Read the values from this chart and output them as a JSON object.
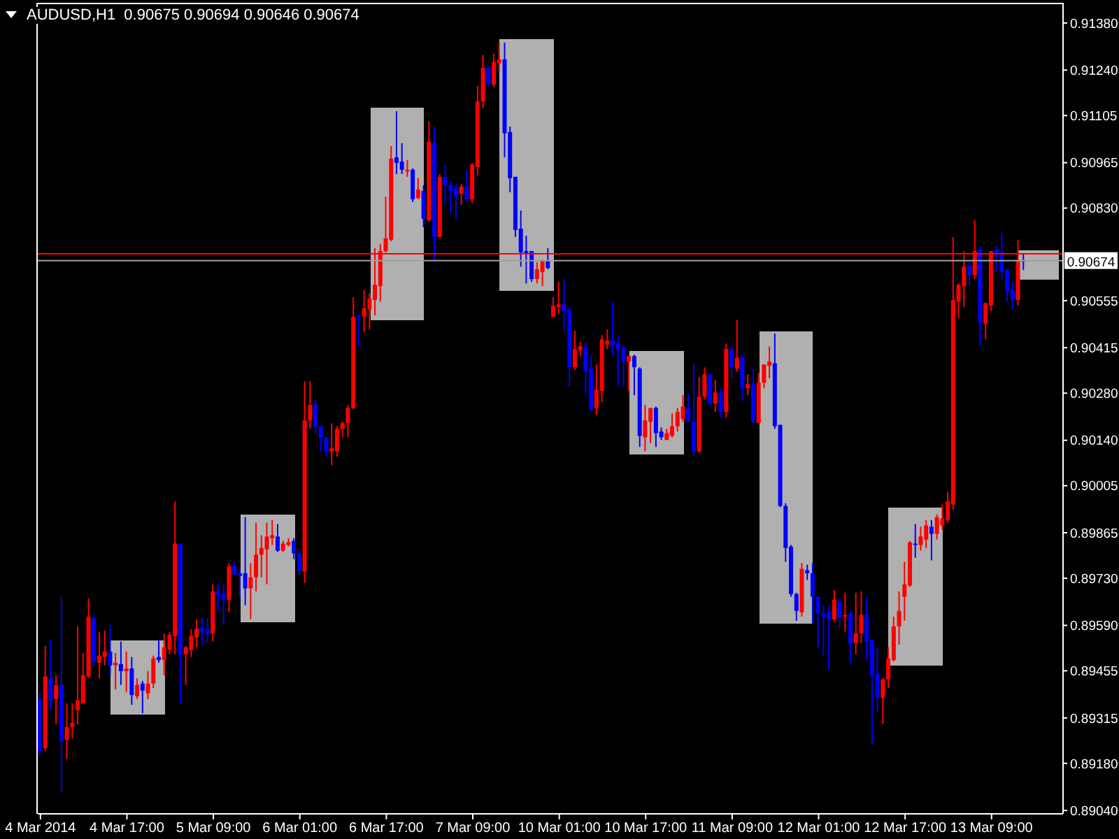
{
  "chart_data": {
    "type": "candlestick",
    "title": "AUDUSD,H1  0.90675 0.90694 0.90646 0.90674",
    "categories": [
      "4 Mar 2014",
      null,
      null,
      null,
      null,
      null,
      null,
      null,
      null,
      null,
      null,
      null,
      null,
      null,
      null,
      null,
      "4 Mar 17:00",
      null,
      null,
      null,
      null,
      null,
      null,
      null,
      null,
      null,
      null,
      null,
      null,
      null,
      null,
      null,
      "5 Mar 09:00",
      null,
      null,
      null,
      null,
      null,
      null,
      null,
      null,
      null,
      null,
      null,
      null,
      null,
      null,
      null,
      "6 Mar 01:00",
      null,
      null,
      null,
      null,
      null,
      null,
      null,
      null,
      null,
      null,
      null,
      null,
      null,
      null,
      null,
      "6 Mar 17:00",
      null,
      null,
      null,
      null,
      null,
      null,
      null,
      null,
      null,
      null,
      null,
      null,
      null,
      null,
      null,
      "7 Mar 09:00",
      null,
      null,
      null,
      null,
      null,
      null,
      null,
      null,
      null,
      null,
      null,
      null,
      null,
      null,
      null,
      "10 Mar 01:00",
      null,
      null,
      null,
      null,
      null,
      null,
      null,
      null,
      null,
      null,
      null,
      null,
      null,
      null,
      null,
      "10 Mar 17:00",
      null,
      null,
      null,
      null,
      null,
      null,
      null,
      null,
      null,
      null,
      null,
      null,
      null,
      null,
      null,
      "11 Mar 09:00",
      null,
      null,
      null,
      null,
      null,
      null,
      null,
      null,
      null,
      null,
      null,
      null,
      null,
      null,
      null,
      "12 Mar 01:00",
      null,
      null,
      null,
      null,
      null,
      null,
      null,
      null,
      null,
      null,
      null,
      null,
      null,
      null,
      null,
      "12 Mar 17:00",
      null,
      null,
      null,
      null,
      null,
      null,
      null,
      null,
      null,
      null,
      null,
      null,
      null,
      null,
      null,
      "13 Mar 09:00",
      null,
      null,
      null,
      null,
      null,
      null
    ],
    "ohlc": [
      [
        0.89371,
        0.89392,
        0.89205,
        0.89217
      ],
      [
        0.89225,
        0.89529,
        0.89217,
        0.89438
      ],
      [
        0.89433,
        0.8955,
        0.89338,
        0.89367
      ],
      [
        0.89371,
        0.89442,
        0.89296,
        0.89413
      ],
      [
        0.89413,
        0.89675,
        0.89092,
        0.89246
      ],
      [
        0.8925,
        0.89358,
        0.89192,
        0.89288
      ],
      [
        0.89288,
        0.89358,
        0.89254,
        0.893
      ],
      [
        0.89338,
        0.89587,
        0.89296,
        0.89367
      ],
      [
        0.89358,
        0.89508,
        0.89358,
        0.89442
      ],
      [
        0.89438,
        0.8967,
        0.89433,
        0.89616
      ],
      [
        0.89612,
        0.89621,
        0.89467,
        0.89483
      ],
      [
        0.89479,
        0.89571,
        0.89433,
        0.895
      ],
      [
        0.89496,
        0.89575,
        0.89471,
        0.89512
      ],
      [
        0.89512,
        0.89591,
        0.89442,
        0.89471
      ],
      [
        0.89471,
        0.89508,
        0.894,
        0.89479
      ],
      [
        0.89475,
        0.89542,
        0.89413,
        0.89454
      ],
      [
        0.89454,
        0.89512,
        0.89392,
        0.89462
      ],
      [
        0.89462,
        0.89496,
        0.89354,
        0.89383
      ],
      [
        0.89379,
        0.89433,
        0.89371,
        0.89413
      ],
      [
        0.89417,
        0.89425,
        0.89329,
        0.89396
      ],
      [
        0.89388,
        0.89454,
        0.89371,
        0.89417
      ],
      [
        0.89417,
        0.895,
        0.89404,
        0.89492
      ],
      [
        0.89496,
        0.89546,
        0.89479,
        0.89487
      ],
      [
        0.89487,
        0.89566,
        0.89442,
        0.89525
      ],
      [
        0.89517,
        0.89571,
        0.89504,
        0.89562
      ],
      [
        0.89558,
        0.89958,
        0.89504,
        0.89833
      ],
      [
        0.89833,
        0.89833,
        0.89358,
        0.89504
      ],
      [
        0.89504,
        0.89529,
        0.89413,
        0.89525
      ],
      [
        0.89517,
        0.89579,
        0.89496,
        0.89558
      ],
      [
        0.89554,
        0.89608,
        0.89525,
        0.89579
      ],
      [
        0.89583,
        0.89612,
        0.89529,
        0.89571
      ],
      [
        0.89579,
        0.89612,
        0.89537,
        0.89566
      ],
      [
        0.89566,
        0.89712,
        0.89542,
        0.89691
      ],
      [
        0.89691,
        0.89712,
        0.89633,
        0.89679
      ],
      [
        0.89683,
        0.89712,
        0.89591,
        0.89666
      ],
      [
        0.89666,
        0.89775,
        0.89629,
        0.89766
      ],
      [
        0.89766,
        0.89779,
        0.89737,
        0.89741
      ],
      [
        0.89745,
        0.89754,
        0.89675,
        0.89737
      ],
      [
        0.89745,
        0.89912,
        0.8965,
        0.897
      ],
      [
        0.897,
        0.89775,
        0.89608,
        0.89733
      ],
      [
        0.89733,
        0.89895,
        0.89691,
        0.898
      ],
      [
        0.898,
        0.89858,
        0.89733,
        0.8982
      ],
      [
        0.89816,
        0.89895,
        0.89712,
        0.89854
      ],
      [
        0.89849,
        0.89903,
        0.89829,
        0.89858
      ],
      [
        0.89854,
        0.89891,
        0.89808,
        0.89812
      ],
      [
        0.89812,
        0.89841,
        0.89808,
        0.89833
      ],
      [
        0.89829,
        0.89849,
        0.89824,
        0.89837
      ],
      [
        0.89841,
        0.89849,
        0.89787,
        0.89804
      ],
      [
        0.89804,
        0.89816,
        0.89741,
        0.8975
      ],
      [
        0.8975,
        0.90315,
        0.89716,
        0.90199
      ],
      [
        0.90199,
        0.90315,
        0.90174,
        0.90245
      ],
      [
        0.90249,
        0.90261,
        0.90161,
        0.90178
      ],
      [
        0.90182,
        0.90182,
        0.90107,
        0.90149
      ],
      [
        0.90149,
        0.90149,
        0.90091,
        0.90107
      ],
      [
        0.90107,
        0.90191,
        0.90066,
        0.90116
      ],
      [
        0.90107,
        0.90182,
        0.90091,
        0.90174
      ],
      [
        0.90174,
        0.90195,
        0.90149,
        0.90191
      ],
      [
        0.90191,
        0.90245,
        0.90149,
        0.90236
      ],
      [
        0.90236,
        0.90565,
        0.90232,
        0.90507
      ],
      [
        0.90511,
        0.90515,
        0.90419,
        0.90507
      ],
      [
        0.90507,
        0.90586,
        0.90461,
        0.90532
      ],
      [
        0.90528,
        0.90577,
        0.90469,
        0.90561
      ],
      [
        0.90557,
        0.90711,
        0.90511,
        0.90602
      ],
      [
        0.90598,
        0.90723,
        0.90552,
        0.90702
      ],
      [
        0.90702,
        0.90864,
        0.90698,
        0.9074
      ],
      [
        0.90736,
        0.91014,
        0.90731,
        0.90977
      ],
      [
        0.90981,
        0.91118,
        0.90931,
        0.90964
      ],
      [
        0.90968,
        0.91023,
        0.90931,
        0.90944
      ],
      [
        0.90939,
        0.90973,
        0.90923,
        0.90944
      ],
      [
        0.90944,
        0.90948,
        0.90848,
        0.90856
      ],
      [
        0.9086,
        0.90919,
        0.90856,
        0.90885
      ],
      [
        0.90881,
        0.90898,
        0.90773,
        0.90798
      ],
      [
        0.90794,
        0.91089,
        0.9079,
        0.91027
      ],
      [
        0.91023,
        0.91072,
        0.90673,
        0.90744
      ],
      [
        0.90744,
        0.90931,
        0.90744,
        0.90923
      ],
      [
        0.90923,
        0.9096,
        0.90844,
        0.90898
      ],
      [
        0.90898,
        0.9091,
        0.90815,
        0.90881
      ],
      [
        0.90889,
        0.90902,
        0.90798,
        0.90864
      ],
      [
        0.90873,
        0.90902,
        0.9084,
        0.90894
      ],
      [
        0.90894,
        0.90944,
        0.90848,
        0.90856
      ],
      [
        0.90856,
        0.90964,
        0.90844,
        0.9096
      ],
      [
        0.90952,
        0.91193,
        0.90927,
        0.91147
      ],
      [
        0.91147,
        0.91285,
        0.91127,
        0.91247
      ],
      [
        0.91247,
        0.91251,
        0.91189,
        0.91201
      ],
      [
        0.91197,
        0.91289,
        0.91189,
        0.91264
      ],
      [
        0.9126,
        0.91322,
        0.91235,
        0.91272
      ],
      [
        0.91272,
        0.91322,
        0.90981,
        0.91052
      ],
      [
        0.91056,
        0.91072,
        0.90877,
        0.90919
      ],
      [
        0.90923,
        0.90923,
        0.90744,
        0.90765
      ],
      [
        0.90769,
        0.90823,
        0.90656,
        0.90698
      ],
      [
        0.90702,
        0.90748,
        0.90606,
        0.90694
      ],
      [
        0.90702,
        0.90702,
        0.90611,
        0.90619
      ],
      [
        0.90619,
        0.90669,
        0.90606,
        0.90648
      ],
      [
        0.9064,
        0.90677,
        0.90598,
        0.90673
      ],
      [
        0.90673,
        0.90711,
        0.90648,
        0.90652
      ],
      [
        0.90507,
        0.90565,
        0.90507,
        0.9054
      ],
      [
        0.90536,
        0.90611,
        0.90515,
        0.90544
      ],
      [
        0.90544,
        0.90619,
        0.90465,
        0.90523
      ],
      [
        0.90528,
        0.90536,
        0.90299,
        0.90357
      ],
      [
        0.90357,
        0.90465,
        0.90349,
        0.90411
      ],
      [
        0.90407,
        0.90432,
        0.9039,
        0.90419
      ],
      [
        0.90415,
        0.90432,
        0.90274,
        0.90344
      ],
      [
        0.90353,
        0.90394,
        0.90224,
        0.90232
      ],
      [
        0.90236,
        0.90365,
        0.90216,
        0.9029
      ],
      [
        0.90286,
        0.90453,
        0.90253,
        0.9044
      ],
      [
        0.90424,
        0.90469,
        0.90411,
        0.90436
      ],
      [
        0.90436,
        0.90552,
        0.9039,
        0.90424
      ],
      [
        0.90428,
        0.90453,
        0.90299,
        0.90411
      ],
      [
        0.90415,
        0.90424,
        0.90299,
        0.90374
      ],
      [
        0.90374,
        0.9039,
        0.90286,
        0.9039
      ],
      [
        0.9039,
        0.90394,
        0.90274,
        0.90357
      ],
      [
        0.90353,
        0.90357,
        0.9012,
        0.90153
      ],
      [
        0.90149,
        0.90245,
        0.90107,
        0.90199
      ],
      [
        0.90195,
        0.90236,
        0.90132,
        0.90236
      ],
      [
        0.90236,
        0.9024,
        0.9012,
        0.90161
      ],
      [
        0.90166,
        0.90178,
        0.90141,
        0.90149
      ],
      [
        0.90141,
        0.90174,
        0.90141,
        0.90161
      ],
      [
        0.90153,
        0.9022,
        0.90149,
        0.90182
      ],
      [
        0.90182,
        0.90236,
        0.90166,
        0.90224
      ],
      [
        0.90203,
        0.90274,
        0.90195,
        0.9024
      ],
      [
        0.90236,
        0.90278,
        0.90195,
        0.90195
      ],
      [
        0.90195,
        0.90369,
        0.90091,
        0.90107
      ],
      [
        0.90107,
        0.90328,
        0.90103,
        0.9027
      ],
      [
        0.9027,
        0.90357,
        0.90261,
        0.90336
      ],
      [
        0.90336,
        0.9034,
        0.90245,
        0.90249
      ],
      [
        0.90249,
        0.9032,
        0.90224,
        0.90282
      ],
      [
        0.90282,
        0.90295,
        0.90207,
        0.90224
      ],
      [
        0.90224,
        0.90428,
        0.90207,
        0.90411
      ],
      [
        0.90411,
        0.90419,
        0.90324,
        0.90357
      ],
      [
        0.90353,
        0.90498,
        0.90344,
        0.90386
      ],
      [
        0.90386,
        0.90394,
        0.90257,
        0.90295
      ],
      [
        0.90295,
        0.90336,
        0.90274,
        0.90307
      ],
      [
        0.90307,
        0.90353,
        0.90191,
        0.90195
      ],
      [
        0.90191,
        0.9034,
        0.90191,
        0.90311
      ],
      [
        0.90311,
        0.90365,
        0.90295,
        0.90365
      ],
      [
        0.90361,
        0.90419,
        0.90324,
        0.90374
      ],
      [
        0.90369,
        0.90457,
        0.90174,
        0.90182
      ],
      [
        0.90186,
        0.90186,
        0.89941,
        0.89945
      ],
      [
        0.89945,
        0.89953,
        0.89779,
        0.8982
      ],
      [
        0.89824,
        0.89829,
        0.89675,
        0.89683
      ],
      [
        0.89683,
        0.89687,
        0.89604,
        0.89633
      ],
      [
        0.89629,
        0.89775,
        0.89616,
        0.89758
      ],
      [
        0.89754,
        0.8977,
        0.89725,
        0.89745
      ],
      [
        0.89745,
        0.89775,
        0.89596,
        0.89675
      ],
      [
        0.89675,
        0.89675,
        0.89521,
        0.89625
      ],
      [
        0.89625,
        0.8965,
        0.895,
        0.89616
      ],
      [
        0.89629,
        0.8965,
        0.89458,
        0.89608
      ],
      [
        0.89608,
        0.89695,
        0.896,
        0.89666
      ],
      [
        0.89662,
        0.8967,
        0.89583,
        0.89612
      ],
      [
        0.89616,
        0.89687,
        0.89571,
        0.89621
      ],
      [
        0.89625,
        0.89633,
        0.89479,
        0.89537
      ],
      [
        0.89537,
        0.89687,
        0.89504,
        0.89566
      ],
      [
        0.89566,
        0.89691,
        0.89537,
        0.89621
      ],
      [
        0.89621,
        0.89675,
        0.89487,
        0.89542
      ],
      [
        0.89546,
        0.8955,
        0.89238,
        0.89442
      ],
      [
        0.89446,
        0.89525,
        0.89334,
        0.89375
      ],
      [
        0.89375,
        0.89433,
        0.89296,
        0.89429
      ],
      [
        0.89429,
        0.89525,
        0.89404,
        0.89492
      ],
      [
        0.89487,
        0.89616,
        0.89483,
        0.89587
      ],
      [
        0.89587,
        0.89691,
        0.89533,
        0.89633
      ],
      [
        0.89675,
        0.89779,
        0.89604,
        0.89712
      ],
      [
        0.89708,
        0.89841,
        0.89704,
        0.89837
      ],
      [
        0.89833,
        0.89891,
        0.89791,
        0.89829
      ],
      [
        0.89829,
        0.89883,
        0.89812,
        0.89854
      ],
      [
        0.89845,
        0.89903,
        0.8982,
        0.89887
      ],
      [
        0.89883,
        0.89903,
        0.89783,
        0.89862
      ],
      [
        0.89862,
        0.8992,
        0.89845,
        0.89912
      ],
      [
        0.89887,
        0.89949,
        0.89874,
        0.89908
      ],
      [
        0.89903,
        0.89987,
        0.89895,
        0.89958
      ],
      [
        0.89949,
        0.90744,
        0.89933,
        0.90557
      ],
      [
        0.90552,
        0.90606,
        0.90503,
        0.90602
      ],
      [
        0.90598,
        0.90702,
        0.90536,
        0.90656
      ],
      [
        0.90661,
        0.90669,
        0.90598,
        0.90631
      ],
      [
        0.90631,
        0.90794,
        0.90619,
        0.90702
      ],
      [
        0.90706,
        0.90715,
        0.90419,
        0.9049
      ],
      [
        0.90486,
        0.90548,
        0.9044,
        0.90548
      ],
      [
        0.9054,
        0.90702,
        0.90523,
        0.90702
      ],
      [
        0.90706,
        0.90719,
        0.9064,
        0.90694
      ],
      [
        0.90698,
        0.90756,
        0.90615,
        0.9064
      ],
      [
        0.90648,
        0.90648,
        0.90552,
        0.90582
      ],
      [
        0.90586,
        0.90611,
        0.90528,
        0.90557
      ],
      [
        0.90557,
        0.90736,
        0.9054,
        0.90673
      ],
      [
        0.90675,
        0.90694,
        0.90646,
        0.90674
      ]
    ],
    "colors": [
      "#0000ff",
      "#ff0000",
      "#0000ff",
      "#ff0000",
      "#0000ff",
      "#ff0000",
      "#ff0000",
      "#ff0000",
      "#ff0000",
      "#ff0000",
      "#0000ff",
      "#ff0000",
      "#ff0000",
      "#0000ff",
      "#ff0000",
      "#0000ff",
      "#ff0000",
      "#0000ff",
      "#ff0000",
      "#0000ff",
      "#ff0000",
      "#ff0000",
      "#0000ff",
      "#ff0000",
      "#ff0000",
      "#ff0000",
      "#0000ff",
      "#ff0000",
      "#ff0000",
      "#ff0000",
      "#0000ff",
      "#0000ff",
      "#ff0000",
      "#0000ff",
      "#0000ff",
      "#ff0000",
      "#0000ff",
      "#0000ff",
      "#0000ff",
      "#ff0000",
      "#ff0000",
      "#ff0000",
      "#ff0000",
      "#ff0000",
      "#0000ff",
      "#ff0000",
      "#ff0000",
      "#0000ff",
      "#0000ff",
      "#ff0000",
      "#ff0000",
      "#0000ff",
      "#0000ff",
      "#0000ff",
      "#ff0000",
      "#ff0000",
      "#ff0000",
      "#ff0000",
      "#ff0000",
      "#0000ff",
      "#ff0000",
      "#ff0000",
      "#ff0000",
      "#ff0000",
      "#ff0000",
      "#ff0000",
      "#0000ff",
      "#0000ff",
      "#ff0000",
      "#0000ff",
      "#ff0000",
      "#0000ff",
      "#ff0000",
      "#0000ff",
      "#ff0000",
      "#0000ff",
      "#0000ff",
      "#0000ff",
      "#ff0000",
      "#0000ff",
      "#ff0000",
      "#ff0000",
      "#ff0000",
      "#0000ff",
      "#ff0000",
      "#ff0000",
      "#0000ff",
      "#0000ff",
      "#0000ff",
      "#0000ff",
      "#0000ff",
      "#0000ff",
      "#ff0000",
      "#ff0000",
      "#0000ff",
      "#ff0000",
      "#ff0000",
      "#0000ff",
      "#0000ff",
      "#ff0000",
      "#ff0000",
      "#0000ff",
      "#0000ff",
      "#ff0000",
      "#ff0000",
      "#ff0000",
      "#0000ff",
      "#0000ff",
      "#0000ff",
      "#ff0000",
      "#0000ff",
      "#0000ff",
      "#ff0000",
      "#ff0000",
      "#0000ff",
      "#0000ff",
      "#ff0000",
      "#ff0000",
      "#ff0000",
      "#ff0000",
      "#0000ff",
      "#0000ff",
      "#ff0000",
      "#ff0000",
      "#0000ff",
      "#ff0000",
      "#0000ff",
      "#ff0000",
      "#0000ff",
      "#ff0000",
      "#0000ff",
      "#ff0000",
      "#0000ff",
      "#ff0000",
      "#ff0000",
      "#ff0000",
      "#0000ff",
      "#0000ff",
      "#0000ff",
      "#0000ff",
      "#0000ff",
      "#ff0000",
      "#0000ff",
      "#0000ff",
      "#0000ff",
      "#0000ff",
      "#0000ff",
      "#ff0000",
      "#0000ff",
      "#ff0000",
      "#0000ff",
      "#ff0000",
      "#ff0000",
      "#0000ff",
      "#0000ff",
      "#0000ff",
      "#ff0000",
      "#ff0000",
      "#ff0000",
      "#ff0000",
      "#ff0000",
      "#ff0000",
      "#0000ff",
      "#ff0000",
      "#ff0000",
      "#0000ff",
      "#ff0000",
      "#ff0000",
      "#ff0000",
      "#ff0000",
      "#ff0000",
      "#ff0000",
      "#0000ff",
      "#ff0000",
      "#0000ff",
      "#ff0000",
      "#ff0000",
      "#0000ff",
      "#0000ff",
      "#0000ff",
      "#0000ff",
      "#ff0000",
      "#0000ff"
    ],
    "ylim": [
      0.8903,
      0.9144
    ],
    "yticks": [
      {
        "value": 0.9138,
        "label": "0.91380"
      },
      {
        "value": 0.9124,
        "label": "0.91240"
      },
      {
        "value": 0.91105,
        "label": "0.91105"
      },
      {
        "value": 0.90965,
        "label": "0.90965"
      },
      {
        "value": 0.9083,
        "label": "0.90830"
      },
      {
        "value": 0.90555,
        "label": "0.90555"
      },
      {
        "value": 0.90415,
        "label": "0.90415"
      },
      {
        "value": 0.9028,
        "label": "0.90280"
      },
      {
        "value": 0.9014,
        "label": "0.90140"
      },
      {
        "value": 0.90005,
        "label": "0.90005"
      },
      {
        "value": 0.89865,
        "label": "0.89865"
      },
      {
        "value": 0.8973,
        "label": "0.89730"
      },
      {
        "value": 0.8959,
        "label": "0.89590"
      },
      {
        "value": 0.89455,
        "label": "0.89455"
      },
      {
        "value": 0.89315,
        "label": "0.89315"
      },
      {
        "value": 0.8918,
        "label": "0.89180"
      },
      {
        "value": 0.8904,
        "label": "0.89040"
      }
    ],
    "ref_lines": [
      {
        "axis": "y",
        "value": 0.90694,
        "color": "#ff0000"
      },
      {
        "axis": "y",
        "value": 0.90674,
        "label": "0.90674",
        "color": "#a0a0a0"
      }
    ]
  }
}
